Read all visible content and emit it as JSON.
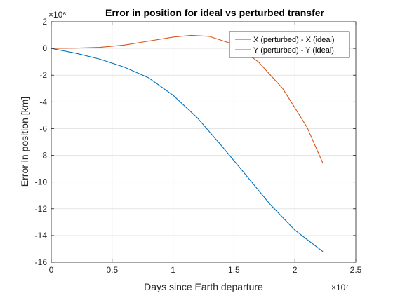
{
  "chart_data": {
    "type": "line",
    "title": "Error in position for ideal vs perturbed transfer",
    "xlabel": "Days since Earth departure",
    "ylabel": "Error in position [km]",
    "x_exponent": "×10⁷",
    "y_exponent": "×10⁶",
    "xlim": [
      0,
      25000000
    ],
    "ylim": [
      -16000000,
      2000000
    ],
    "x_ticks": [
      0,
      5000000,
      10000000,
      15000000,
      20000000,
      25000000
    ],
    "x_tick_labels": [
      "0",
      "0.5",
      "1",
      "1.5",
      "2",
      "2.5"
    ],
    "y_ticks": [
      2000000,
      0,
      -2000000,
      -4000000,
      -6000000,
      -8000000,
      -10000000,
      -12000000,
      -14000000,
      -16000000
    ],
    "y_tick_labels": [
      "2",
      "0",
      "-2",
      "-4",
      "-6",
      "-8",
      "-10",
      "-12",
      "-14",
      "-16"
    ],
    "grid": true,
    "legend_position": "top-right",
    "series": [
      {
        "name": "X (perturbed) - X (ideal)",
        "color": "#0072BD",
        "x": [
          0,
          2000000,
          4000000,
          6000000,
          8000000,
          10000000,
          12000000,
          14000000,
          16000000,
          18000000,
          20000000,
          22300000
        ],
        "y": [
          0,
          -350000,
          -800000,
          -1400000,
          -2200000,
          -3500000,
          -5200000,
          -7300000,
          -9500000,
          -11700000,
          -13600000,
          -15200000
        ]
      },
      {
        "name": "Y (perturbed) - Y (ideal)",
        "color": "#D95319",
        "x": [
          0,
          2000000,
          4000000,
          6000000,
          8000000,
          10000000,
          11500000,
          13000000,
          15000000,
          17000000,
          19000000,
          21000000,
          22300000
        ],
        "y": [
          0,
          20000,
          80000,
          250000,
          550000,
          850000,
          980000,
          900000,
          300000,
          -1000000,
          -3000000,
          -5900000,
          -8600000
        ]
      }
    ]
  }
}
